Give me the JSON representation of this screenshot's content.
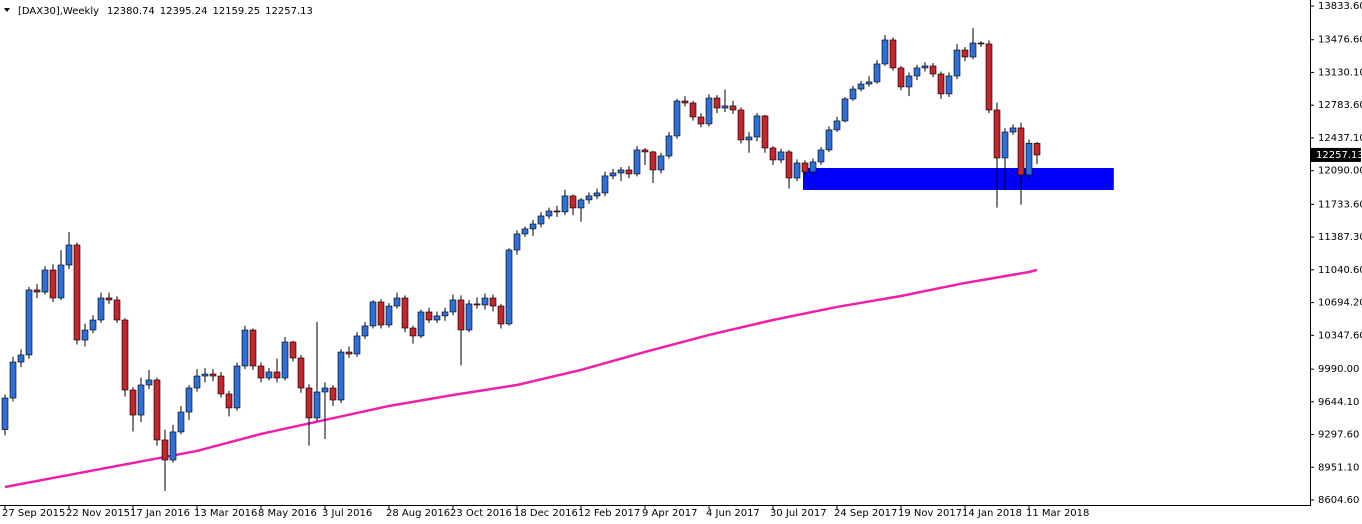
{
  "chart_data": {
    "type": "candlestick",
    "title": "[DAX30],Weekly",
    "categories": [
      "27 Sep 2015",
      null,
      null,
      null,
      null,
      null,
      null,
      null,
      "22 Nov 2015",
      null,
      null,
      null,
      null,
      null,
      null,
      null,
      "17 Jan 2016",
      null,
      null,
      null,
      null,
      null,
      null,
      null,
      "13 Mar 2016",
      null,
      null,
      null,
      null,
      null,
      null,
      null,
      "8 May 2016",
      null,
      null,
      null,
      null,
      null,
      null,
      null,
      "3 Jul 2016",
      null,
      null,
      null,
      null,
      null,
      null,
      null,
      "28 Aug 2016",
      null,
      null,
      null,
      null,
      null,
      null,
      null,
      "23 Oct 2016",
      null,
      null,
      null,
      null,
      null,
      null,
      null,
      "18 Dec 2016",
      null,
      null,
      null,
      null,
      null,
      null,
      null,
      "12 Feb 2017",
      null,
      null,
      null,
      null,
      null,
      null,
      null,
      "9 Apr 2017",
      null,
      null,
      null,
      null,
      null,
      null,
      null,
      "4 Jun 2017",
      null,
      null,
      null,
      null,
      null,
      null,
      null,
      "30 Jul 2017",
      null,
      null,
      null,
      null,
      null,
      null,
      null,
      "24 Sep 2017",
      null,
      null,
      null,
      null,
      null,
      null,
      null,
      "19 Nov 2017",
      null,
      null,
      null,
      null,
      null,
      null,
      null,
      "14 Jan 2018",
      null,
      null,
      null,
      null,
      null,
      null,
      null,
      "11 Mar 2018",
      null
    ],
    "ohlc": {
      "open": [
        9350,
        9684,
        10065,
        10140,
        10828,
        10806,
        11039,
        10743,
        11092,
        11304,
        10298,
        10404,
        10510,
        10743,
        10722,
        10510,
        9769,
        9504,
        9822,
        9875,
        9240,
        9028,
        9325,
        9536,
        9790,
        9917,
        9938,
        9917,
        9727,
        9579,
        10023,
        10404,
        10023,
        9896,
        9960,
        9896,
        10277,
        10108,
        9790,
        9473,
        9748,
        9790,
        9663,
        10171,
        10150,
        10341,
        10447,
        10701,
        10457,
        10658,
        10743,
        10425,
        10341,
        10595,
        10510,
        10553,
        10595,
        10722,
        10404,
        10680,
        10669,
        10743,
        10658,
        10468,
        11251,
        11421,
        11474,
        11526,
        11611,
        11664,
        11654,
        11823,
        11696,
        11781,
        11823,
        11855,
        12035,
        12066,
        12098,
        12056,
        12310,
        12289,
        12098,
        12246,
        12458,
        12828,
        12807,
        12659,
        12585,
        12860,
        12754,
        12776,
        12733,
        12416,
        12447,
        12670,
        12331,
        12204,
        12289,
        12013,
        12172,
        12077,
        12183,
        12310,
        12522,
        12617,
        12850,
        12955,
        13008,
        13030,
        13220,
        13474,
        13178,
        12977,
        13093,
        13178,
        13199,
        13114,
        12903,
        13093,
        13368,
        13294,
        13442,
        13432,
        12733,
        12225,
        12500,
        12543,
        12045,
        12380.74
      ],
      "high": [
        9720,
        10120,
        10200,
        10860,
        10890,
        11080,
        11100,
        11250,
        11440,
        11330,
        10470,
        10560,
        10800,
        10800,
        10760,
        10530,
        9800,
        9900,
        9980,
        9900,
        9350,
        9400,
        9600,
        9820,
        9990,
        10000,
        9990,
        9960,
        9760,
        10060,
        10450,
        10420,
        10060,
        10000,
        10100,
        10330,
        10290,
        10140,
        9830,
        10490,
        9850,
        9820,
        10200,
        10230,
        10380,
        10490,
        10720,
        10730,
        10690,
        10800,
        10770,
        10450,
        10620,
        10640,
        10600,
        10640,
        10780,
        10770,
        10720,
        10750,
        10790,
        10780,
        10680,
        11270,
        11460,
        11500,
        11570,
        11650,
        11700,
        11720,
        11890,
        11840,
        11800,
        11860,
        11900,
        12080,
        12110,
        12130,
        12140,
        12350,
        12330,
        12300,
        12280,
        12500,
        12850,
        12880,
        12830,
        12700,
        12900,
        12890,
        12950,
        12830,
        12760,
        12500,
        12700,
        12680,
        12350,
        12320,
        12310,
        12210,
        12200,
        12220,
        12340,
        12560,
        12660,
        12870,
        12990,
        13040,
        13090,
        13260,
        13525,
        13500,
        13200,
        13130,
        13210,
        13240,
        13230,
        13140,
        13130,
        13430,
        13400,
        13600,
        13460,
        13470,
        12810,
        12540,
        12580,
        12600,
        12420,
        12395.24
      ],
      "low": [
        9290,
        9650,
        10010,
        10100,
        10740,
        10780,
        10700,
        10720,
        11050,
        10250,
        10230,
        10370,
        10480,
        10680,
        10480,
        9700,
        9330,
        9430,
        9780,
        9180,
        8700,
        9000,
        9300,
        9450,
        9750,
        9850,
        9860,
        9690,
        9490,
        9550,
        9990,
        9980,
        9850,
        9870,
        9850,
        9870,
        10070,
        9740,
        9180,
        9440,
        9250,
        9600,
        9630,
        10110,
        10120,
        10310,
        10420,
        10420,
        10430,
        10630,
        10380,
        10260,
        10320,
        10480,
        10480,
        10500,
        10560,
        10030,
        10380,
        10630,
        10620,
        10600,
        10420,
        10450,
        11200,
        11390,
        11400,
        11490,
        11580,
        11600,
        11620,
        11620,
        11550,
        11740,
        11790,
        11820,
        12000,
        11980,
        12010,
        12030,
        12150,
        11960,
        12060,
        12220,
        12430,
        12770,
        12620,
        12550,
        12560,
        12700,
        12710,
        12690,
        12380,
        12280,
        12400,
        12280,
        12150,
        12170,
        11900,
        11980,
        12040,
        12050,
        12150,
        12290,
        12500,
        12600,
        12830,
        12930,
        12980,
        13010,
        13200,
        13150,
        12940,
        12880,
        13050,
        13140,
        13080,
        12850,
        12870,
        13060,
        13250,
        13270,
        13400,
        12700,
        11700,
        11890,
        12470,
        11730,
        12000,
        12159.25
      ],
      "close": [
        9684,
        10065,
        10140,
        10828,
        10806,
        11039,
        10743,
        11092,
        11304,
        10298,
        10404,
        10510,
        10743,
        10722,
        10510,
        9769,
        9504,
        9822,
        9875,
        9240,
        9028,
        9325,
        9536,
        9790,
        9917,
        9938,
        9917,
        9727,
        9579,
        10023,
        10404,
        10023,
        9896,
        9960,
        9896,
        10277,
        10108,
        9790,
        9473,
        9748,
        9790,
        9663,
        10171,
        10150,
        10341,
        10447,
        10701,
        10457,
        10658,
        10743,
        10425,
        10341,
        10595,
        10510,
        10553,
        10595,
        10722,
        10404,
        10680,
        10669,
        10743,
        10658,
        10468,
        11251,
        11421,
        11474,
        11526,
        11611,
        11664,
        11654,
        11823,
        11696,
        11781,
        11823,
        11855,
        12035,
        12066,
        12098,
        12056,
        12310,
        12289,
        12098,
        12246,
        12458,
        12828,
        12807,
        12659,
        12585,
        12860,
        12754,
        12776,
        12733,
        12416,
        12447,
        12670,
        12331,
        12204,
        12289,
        12013,
        12172,
        12077,
        12183,
        12310,
        12522,
        12617,
        12850,
        12955,
        13008,
        13030,
        13220,
        13474,
        13178,
        12977,
        13093,
        13178,
        13199,
        13114,
        12903,
        13093,
        13368,
        13294,
        13442,
        13432,
        12733,
        12225,
        12500,
        12543,
        12045,
        12381,
        12257.13
      ],
      "up_color": "#2f6fd6",
      "down_color": "#c3262c"
    },
    "moving_average": {
      "color": "#f01fa8",
      "x": [
        0,
        8,
        16,
        24,
        32,
        40,
        48,
        56,
        64,
        72,
        80,
        88,
        96,
        104,
        112,
        120,
        128,
        129
      ],
      "values": [
        8742,
        8870,
        8997,
        9124,
        9304,
        9452,
        9600,
        9716,
        9822,
        9981,
        10172,
        10352,
        10510,
        10648,
        10764,
        10902,
        11018,
        11040
      ]
    },
    "zone": {
      "color": "#0000ff",
      "x": [
        99.75,
        138.6
      ],
      "low": 11886,
      "high": 12119
    },
    "ylim": [
      8604.6,
      13833.6
    ],
    "yticks": [
      {
        "value": 13833.6,
        "label": "13833.60"
      },
      {
        "value": 13476.6,
        "label": "13476.60"
      },
      {
        "value": 13130.1,
        "label": "13130.10"
      },
      {
        "value": 12783.6,
        "label": "12783.60"
      },
      {
        "value": 12437.1,
        "label": "12437.10"
      },
      {
        "value": 12090,
        "label": "12090.00"
      },
      {
        "value": 11733.6,
        "label": "11733.60"
      },
      {
        "value": 11387.3,
        "label": "11387.30"
      },
      {
        "value": 11040.6,
        "label": "11040.60"
      },
      {
        "value": 10694.2,
        "label": "10694.20"
      },
      {
        "value": 10347.6,
        "label": "10347.60"
      },
      {
        "value": 9990,
        "label": "9990.00"
      },
      {
        "value": 9644.1,
        "label": "9644.10"
      },
      {
        "value": 9297.6,
        "label": "9297.60"
      },
      {
        "value": 8951.1,
        "label": "8951.10"
      },
      {
        "value": 8604.6,
        "label": "8604.60"
      }
    ]
  }
}
